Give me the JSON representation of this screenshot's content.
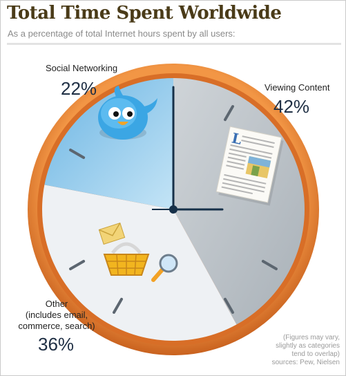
{
  "header": {
    "title": "Total Time Spent Worldwide",
    "subtitle": "As a percentage of total Internet hours spent by all users:"
  },
  "segments": {
    "social": {
      "label": "Social Networking",
      "value": "22%"
    },
    "viewing": {
      "label": "Viewing Content",
      "value": "42%"
    },
    "other": {
      "label_lines": [
        "Other",
        "(includes email,",
        "commerce, search)"
      ],
      "value": "36%"
    }
  },
  "footnote": {
    "lines": [
      "(Figures may vary,",
      "slightly as categories",
      "tend to overlap)",
      "sources: Pew, Nielsen"
    ]
  },
  "colors": {
    "rim": "#e07a2e",
    "viewing": "#b9c0c6",
    "social": "#8ec8ea",
    "other": "#eef1f4",
    "hands": "#163049"
  },
  "icons": {
    "social": "twitter-bird-icon",
    "viewing": "document-icon",
    "other": [
      "envelope-icon",
      "shopping-basket-icon",
      "magnifier-icon"
    ]
  },
  "chart_data": {
    "type": "pie",
    "title": "Total Time Spent Worldwide",
    "subtitle": "As a percentage of total Internet hours spent by all users:",
    "categories": [
      "Viewing Content",
      "Other (includes email, commerce, search)",
      "Social Networking"
    ],
    "values": [
      42,
      36,
      22
    ],
    "unit": "%",
    "colors": [
      "#b9c0c6",
      "#eef1f4",
      "#8ec8ea"
    ],
    "legend": "none"
  }
}
